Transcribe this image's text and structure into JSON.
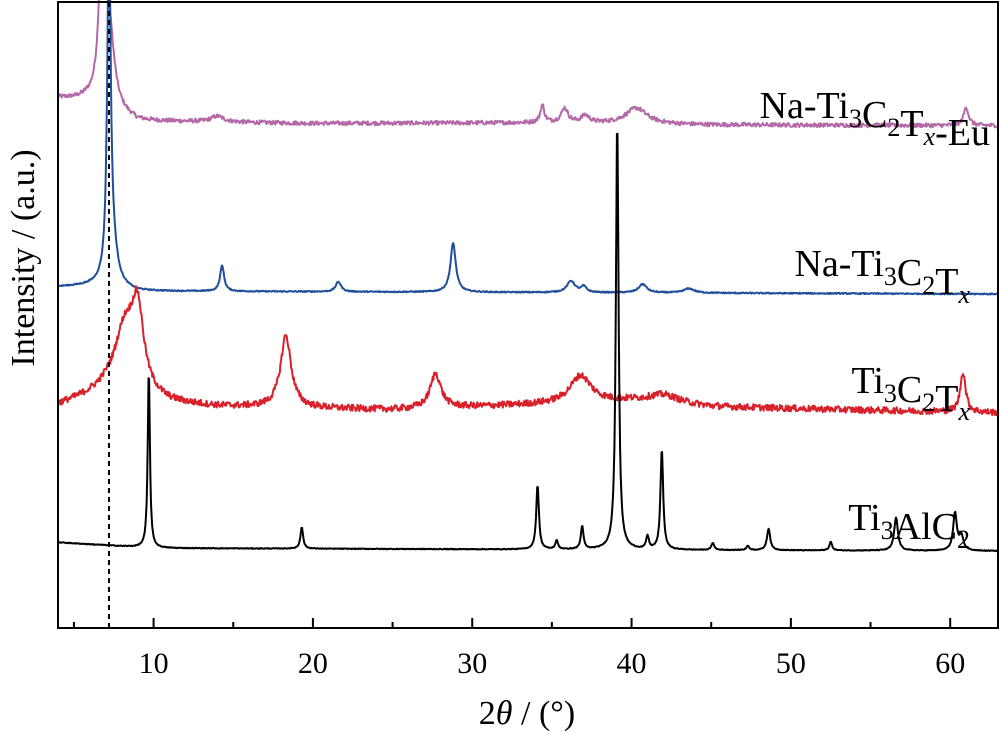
{
  "chart_data": {
    "type": "line",
    "xlabel_prefix": "2",
    "xlabel_theta": "θ",
    "xlabel_suffix": " / (°)",
    "ylabel": "Intensity / (a.u.)",
    "xlim": [
      4,
      63
    ],
    "xticks": [
      10,
      20,
      30,
      40,
      50,
      60
    ],
    "xtick_labels": [
      "10",
      "20",
      "30",
      "40",
      "50",
      "60"
    ],
    "reference_line_x": 7.2,
    "y_ticks_shown": false,
    "grid": false,
    "legend": "none (labels printed beside each trace)",
    "series": [
      {
        "name": "Na-Ti3C2Tx-Eu",
        "label": {
          "parts": [
            [
              "Na-Ti",
              "n"
            ],
            [
              "3",
              "sub"
            ],
            [
              "C",
              "n"
            ],
            [
              "2",
              "sub"
            ],
            [
              "T",
              "n"
            ],
            [
              "x",
              "sub-i"
            ],
            [
              "-Eu",
              "n"
            ]
          ]
        },
        "color": "#b468a8",
        "baseline": 0.7,
        "noise": 0.28,
        "background": [
          [
            4,
            2.2
          ],
          [
            5.8,
            2.0
          ],
          [
            6.5,
            1.6
          ],
          [
            9,
            0.6
          ],
          [
            20,
            0.45
          ],
          [
            35,
            0.5
          ],
          [
            45,
            0.35
          ],
          [
            63,
            0.3
          ]
        ],
        "peaks": [
          [
            6.85,
            18.8,
            0.22
          ],
          [
            7.3,
            3.0,
            0.35
          ],
          [
            14.0,
            0.4,
            0.5
          ],
          [
            34.4,
            1.2,
            0.15
          ],
          [
            35.8,
            1.0,
            0.25
          ],
          [
            37.1,
            0.5,
            0.3
          ],
          [
            40.3,
            1.1,
            0.8
          ],
          [
            61.0,
            1.3,
            0.18
          ]
        ]
      },
      {
        "name": "Na-Ti3C2Tx",
        "label": {
          "parts": [
            [
              "Na-Ti",
              "n"
            ],
            [
              "3",
              "sub"
            ],
            [
              "C",
              "n"
            ],
            [
              "2",
              "sub"
            ],
            [
              "T",
              "n"
            ],
            [
              "x",
              "sub-i"
            ]
          ]
        },
        "color": "#1f4e9c",
        "baseline": 0.0,
        "noise": 0.08,
        "background": [
          [
            4,
            0.5
          ],
          [
            6.6,
            0.6
          ],
          [
            9,
            0.2
          ],
          [
            63,
            0.0
          ]
        ],
        "peaks": [
          [
            7.2,
            24.0,
            0.13
          ],
          [
            7.45,
            2.0,
            0.35
          ],
          [
            14.3,
            1.8,
            0.15
          ],
          [
            21.6,
            0.7,
            0.2
          ],
          [
            28.8,
            3.4,
            0.2
          ],
          [
            36.2,
            0.8,
            0.3
          ],
          [
            37.0,
            0.4,
            0.2
          ],
          [
            40.7,
            0.6,
            0.3
          ],
          [
            43.6,
            0.3,
            0.4
          ]
        ]
      },
      {
        "name": "Ti3C2Tx",
        "label": {
          "parts": [
            [
              "Ti",
              "n"
            ],
            [
              "3",
              "sub"
            ],
            [
              "C",
              "n"
            ],
            [
              "2",
              "sub"
            ],
            [
              "T",
              "n"
            ],
            [
              "x",
              "sub-i"
            ]
          ]
        },
        "color": "#d9212b",
        "baseline": 0.3,
        "noise": 0.45,
        "background": [
          [
            4,
            0.7
          ],
          [
            7,
            1.6
          ],
          [
            11,
            0.8
          ],
          [
            14,
            0.6
          ],
          [
            25,
            0.4
          ],
          [
            40,
            1.0
          ],
          [
            45,
            0.6
          ],
          [
            63,
            0.2
          ]
        ],
        "peaks": [
          [
            8.2,
            4.5,
            0.8
          ],
          [
            9.0,
            5.2,
            0.45
          ],
          [
            18.3,
            5.0,
            0.4
          ],
          [
            27.7,
            2.4,
            0.4
          ],
          [
            36.8,
            1.9,
            0.8
          ],
          [
            42.0,
            0.6,
            1.2
          ],
          [
            60.8,
            2.8,
            0.2
          ]
        ]
      },
      {
        "name": "Ti3AlC2",
        "label": {
          "parts": [
            [
              "Ti",
              "n"
            ],
            [
              "3",
              "sub"
            ],
            [
              "AlC",
              "n"
            ],
            [
              "2",
              "sub"
            ]
          ]
        },
        "color": "#000000",
        "baseline": 0.0,
        "noise": 0.05,
        "background": [
          [
            4,
            0.6
          ],
          [
            10,
            0.2
          ],
          [
            35,
            0.1
          ],
          [
            63,
            0.0
          ]
        ],
        "peaks": [
          [
            9.7,
            12.5,
            0.08
          ],
          [
            19.3,
            1.5,
            0.1
          ],
          [
            34.1,
            4.5,
            0.1
          ],
          [
            35.3,
            0.6,
            0.1
          ],
          [
            36.9,
            1.6,
            0.1
          ],
          [
            39.1,
            30.0,
            0.1
          ],
          [
            41.0,
            0.9,
            0.1
          ],
          [
            41.9,
            7.0,
            0.1
          ],
          [
            45.1,
            0.5,
            0.1
          ],
          [
            47.3,
            0.3,
            0.1
          ],
          [
            48.6,
            1.5,
            0.12
          ],
          [
            52.5,
            0.6,
            0.1
          ],
          [
            56.6,
            2.3,
            0.14
          ],
          [
            60.3,
            2.6,
            0.14
          ],
          [
            60.7,
            1.0,
            0.15
          ]
        ]
      }
    ]
  }
}
